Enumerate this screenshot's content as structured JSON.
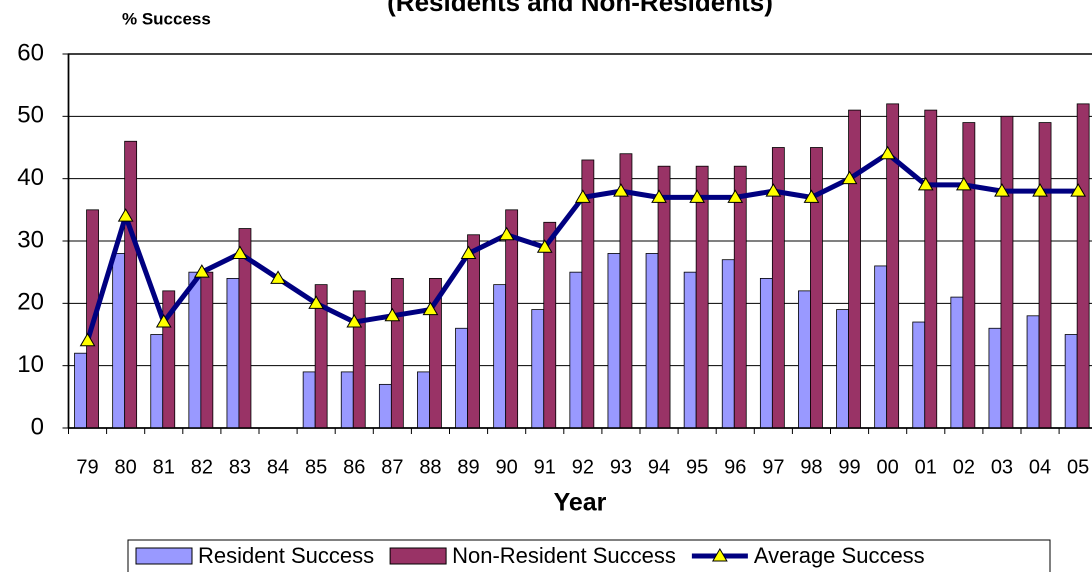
{
  "chart_data": {
    "type": "bar",
    "title": "(Residents and Non-Residents)",
    "y_label": "% Success",
    "x_label": "Year",
    "categories": [
      "79",
      "80",
      "81",
      "82",
      "83",
      "84",
      "85",
      "86",
      "87",
      "88",
      "89",
      "90",
      "91",
      "92",
      "93",
      "94",
      "95",
      "96",
      "97",
      "98",
      "99",
      "00",
      "01",
      "02",
      "03",
      "04",
      "05"
    ],
    "series": [
      {
        "name": "Resident Success",
        "type": "bar",
        "color": "#9999ff",
        "values": [
          12,
          28,
          15,
          25,
          24,
          null,
          9,
          9,
          7,
          9,
          16,
          23,
          19,
          25,
          28,
          28,
          25,
          27,
          24,
          22,
          19,
          26,
          17,
          21,
          16,
          18,
          15
        ]
      },
      {
        "name": "Non-Resident Success",
        "type": "bar",
        "color": "#993366",
        "values": [
          35,
          46,
          22,
          25,
          32,
          null,
          23,
          22,
          24,
          24,
          31,
          35,
          33,
          43,
          44,
          42,
          42,
          42,
          45,
          45,
          51,
          52,
          51,
          49,
          50,
          49,
          52
        ]
      },
      {
        "name": "Average Success",
        "type": "line",
        "color": "#000080",
        "marker_color": "#ffff00",
        "values": [
          14,
          34,
          17,
          25,
          28,
          24,
          20,
          17,
          18,
          19,
          28,
          31,
          29,
          37,
          38,
          37,
          37,
          37,
          38,
          37,
          40,
          44,
          39,
          39,
          38,
          38,
          38
        ]
      }
    ],
    "ylim": [
      0,
      60
    ],
    "yticks": [
      0,
      10,
      20,
      30,
      40,
      50,
      60
    ],
    "grid": true,
    "legend": "bottom"
  }
}
